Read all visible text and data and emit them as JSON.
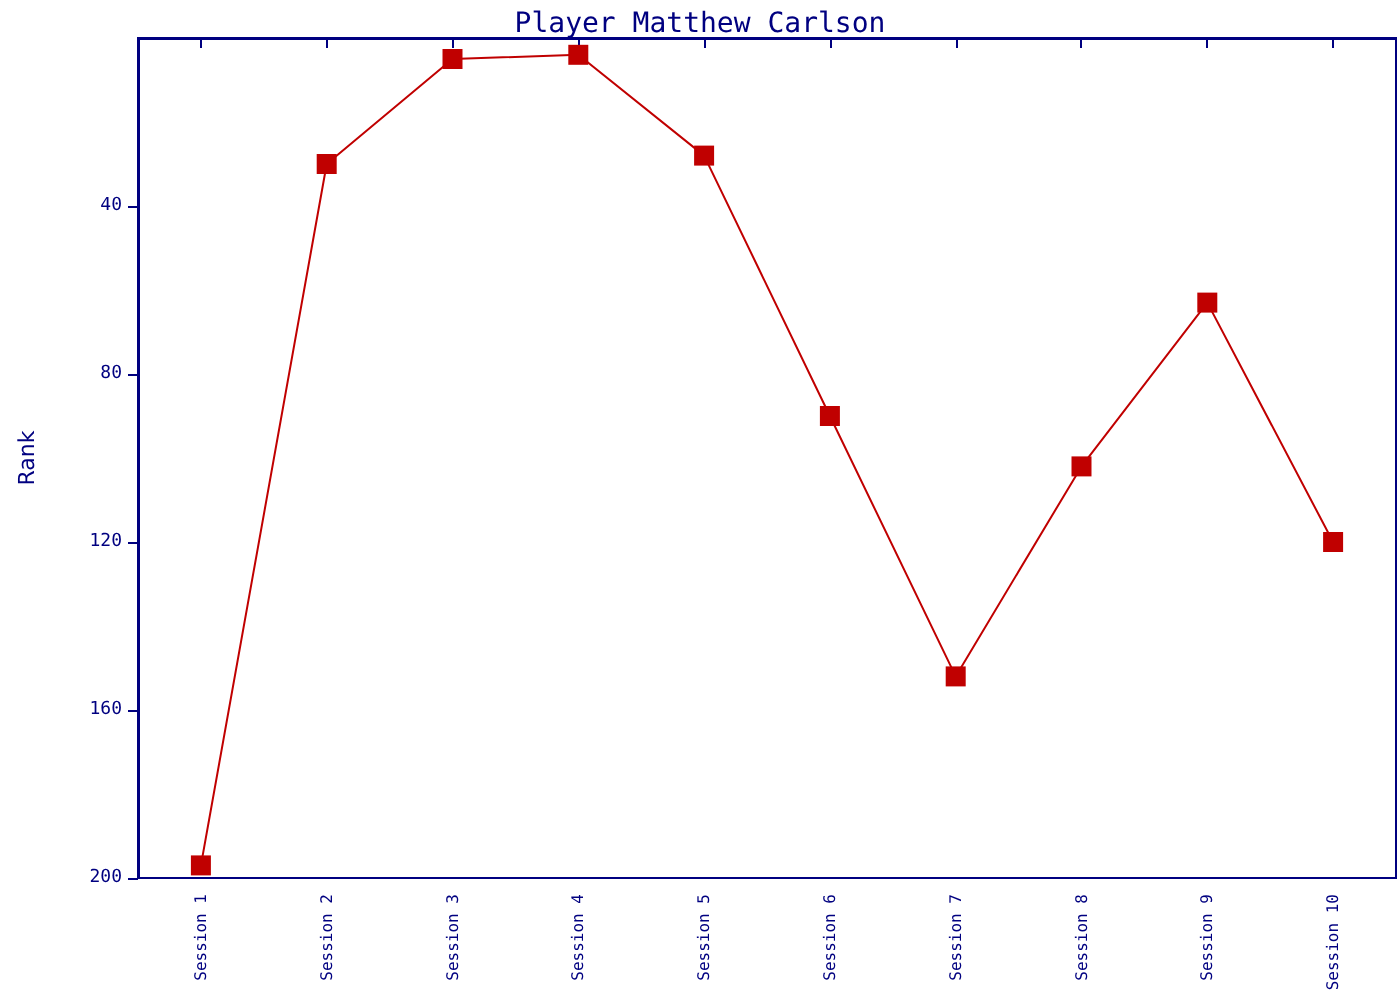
{
  "chart_data": {
    "type": "line",
    "title": "Player Matthew Carlson",
    "ylabel": "Rank",
    "categories": [
      "Session 1",
      "Session 2",
      "Session 3",
      "Session 4",
      "Session 5",
      "Session 6",
      "Session 7",
      "Session 8",
      "Session 9",
      "Session 10"
    ],
    "series": [
      {
        "color": "#c00000",
        "values": [
          197,
          30,
          5,
          4,
          28,
          90,
          152,
          102,
          63,
          120
        ]
      }
    ],
    "ylim": [
      200,
      0
    ],
    "yticks": [
      40,
      80,
      120,
      160,
      200
    ],
    "grid": false,
    "marker": "square",
    "line_style": "solid"
  }
}
